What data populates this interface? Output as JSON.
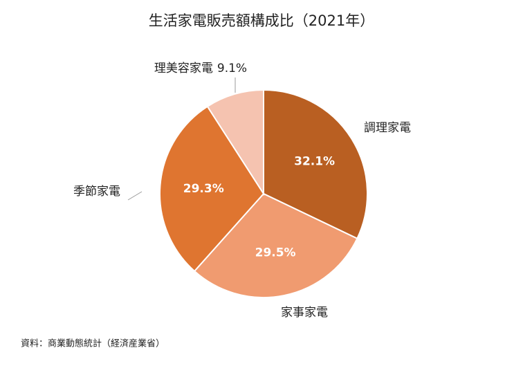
{
  "chart_data": {
    "type": "pie",
    "title": "生活家電販売額構成比（2021年）",
    "categories": [
      "調理家電",
      "家事家電",
      "季節家電",
      "理美容家電"
    ],
    "values": [
      32.1,
      29.5,
      29.3,
      9.1
    ],
    "value_labels": [
      "32.1%",
      "29.5%",
      "29.3%",
      "9.1%"
    ],
    "colors": [
      "#b95f22",
      "#f09b70",
      "#df7530",
      "#f5c3b0"
    ],
    "source": "資料：商業動態統計（経済産業省）"
  }
}
